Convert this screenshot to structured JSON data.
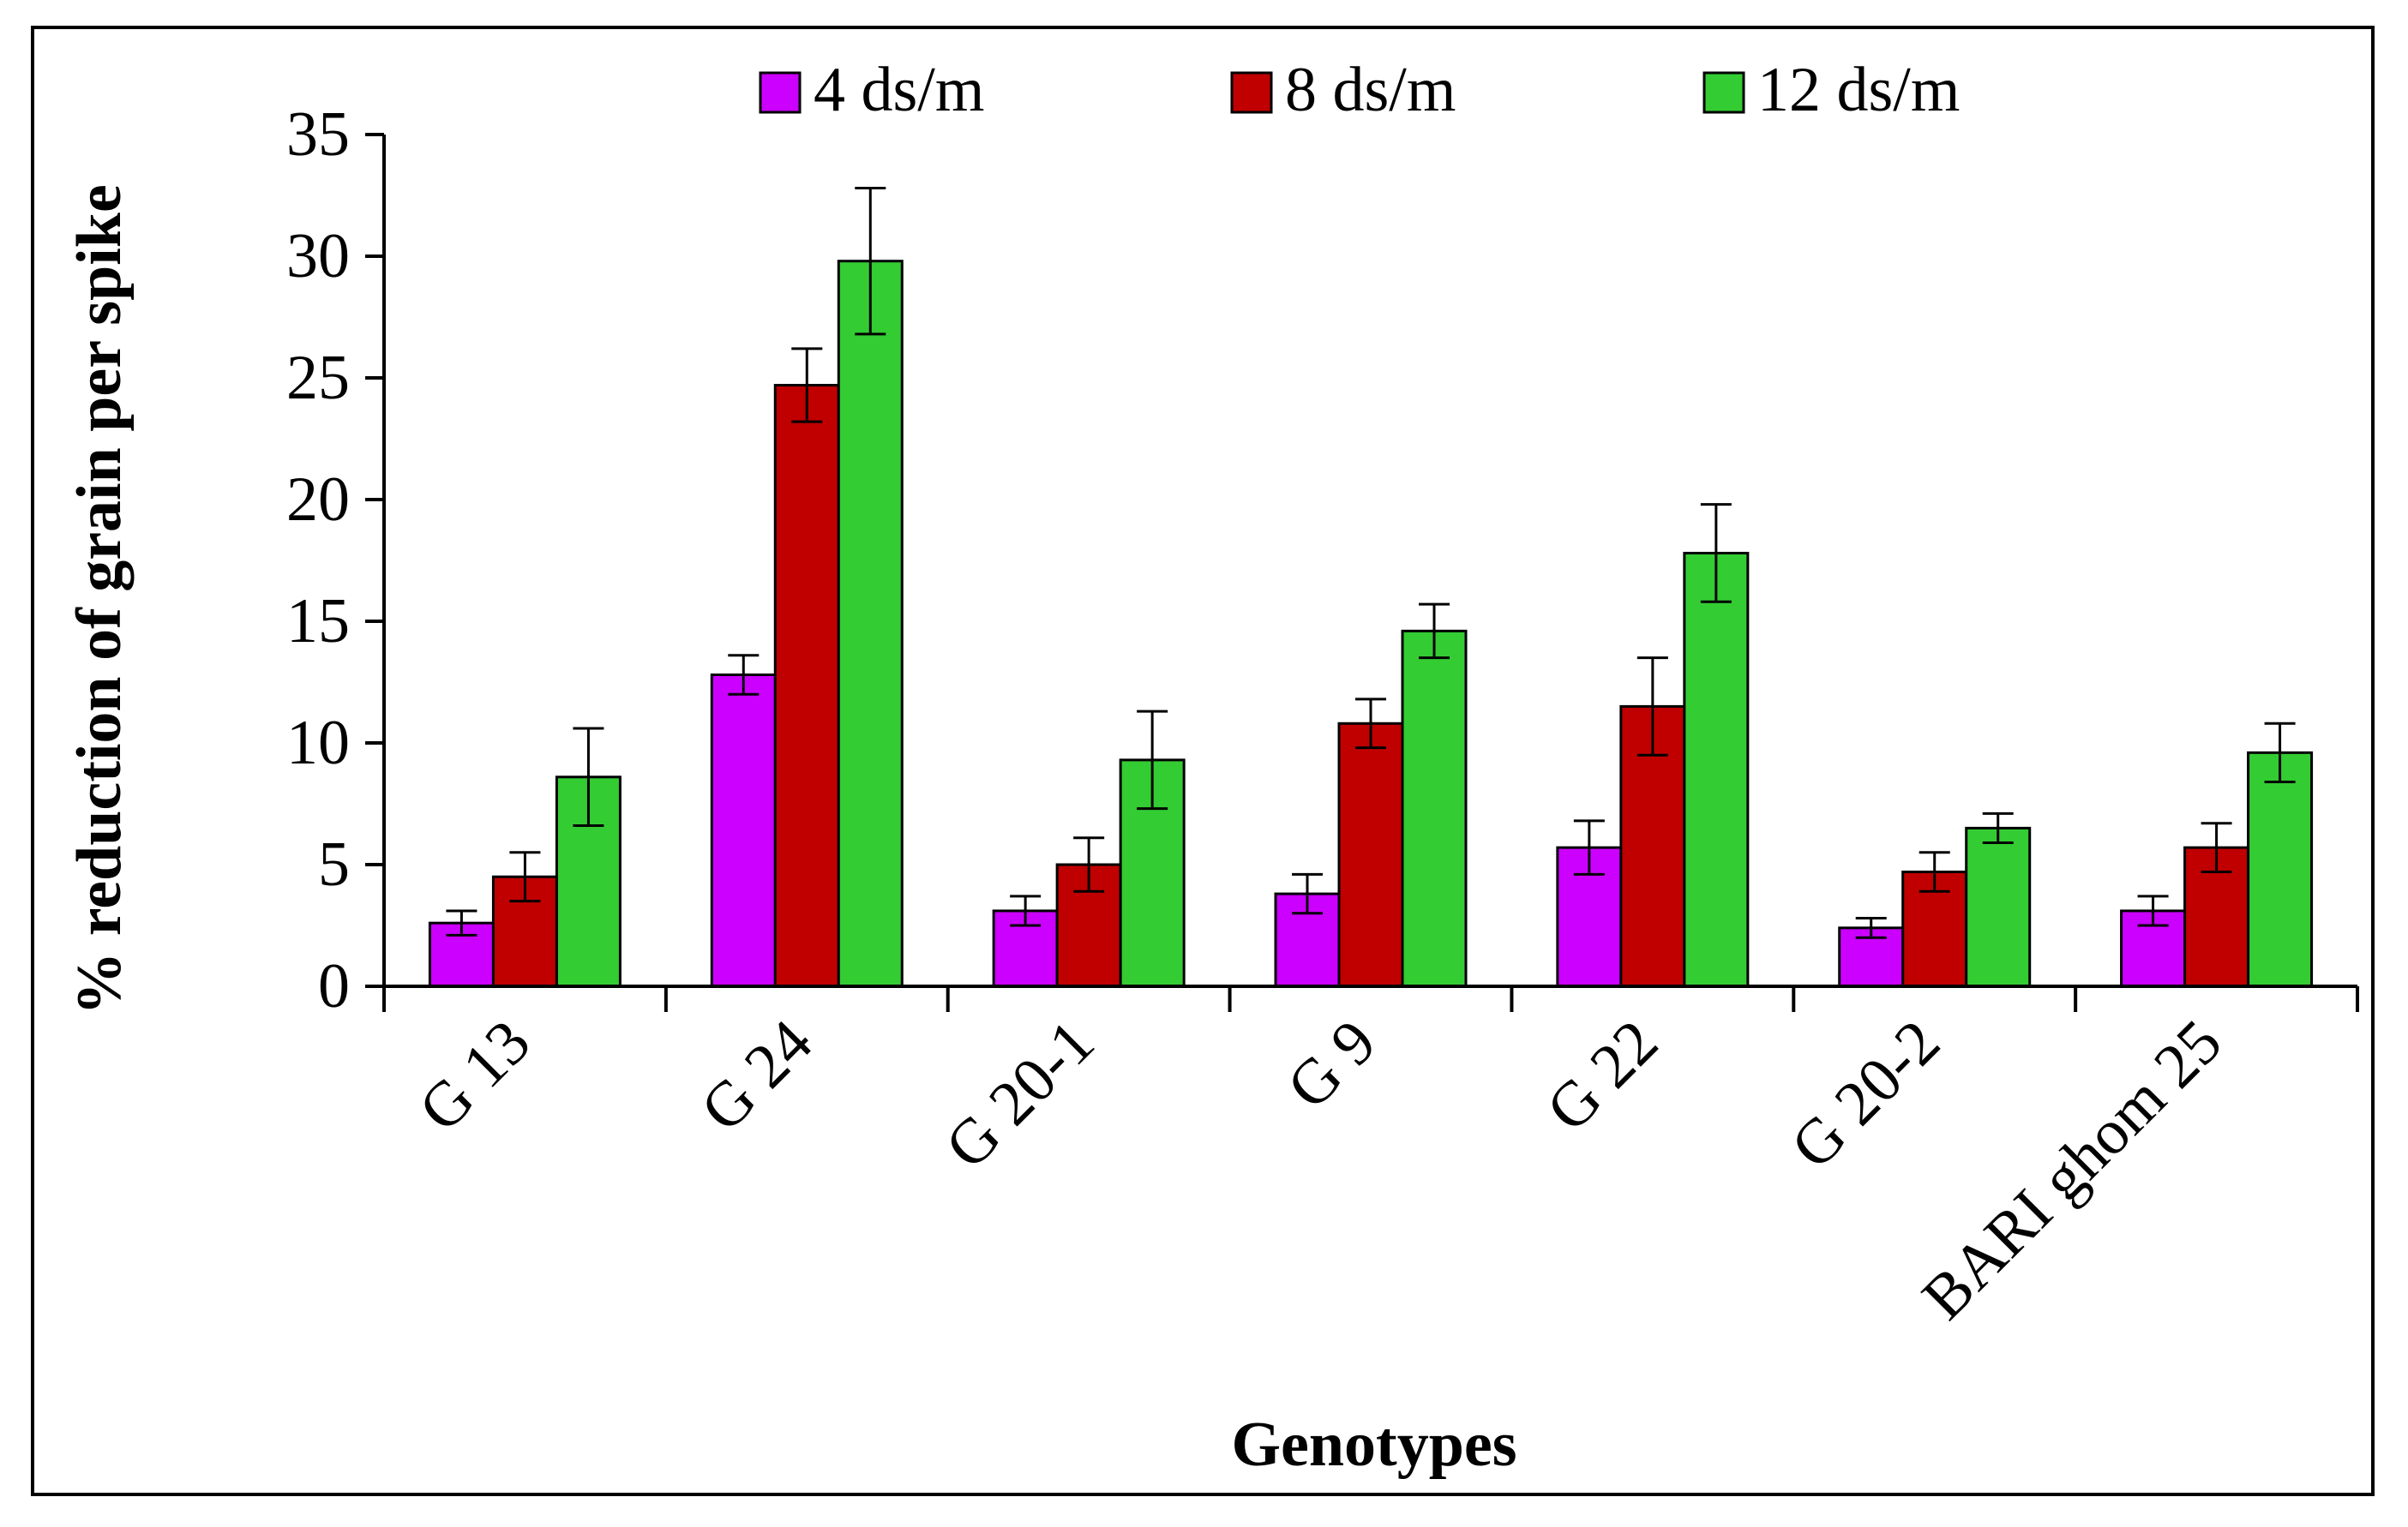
{
  "chart_data": {
    "type": "bar",
    "title": "",
    "xlabel": "Genotypes",
    "ylabel": "% reduction of grain per spike",
    "ylim": [
      0,
      35
    ],
    "yticks": [
      0,
      5,
      10,
      15,
      20,
      25,
      30,
      35
    ],
    "grid": false,
    "legend_position": "top",
    "categories": [
      "G 13",
      "G 24",
      "G 20-1",
      "G 9",
      "G 22",
      "G 20-2",
      "BARI ghom 25"
    ],
    "series": [
      {
        "name": "4 ds/m",
        "color": "#cc00ff",
        "values": [
          2.6,
          12.8,
          3.1,
          3.8,
          5.7,
          2.4,
          3.1
        ],
        "errors": [
          0.5,
          0.8,
          0.6,
          0.8,
          1.1,
          0.4,
          0.6
        ]
      },
      {
        "name": "8 ds/m",
        "color": "#c00000",
        "values": [
          4.5,
          24.7,
          5.0,
          10.8,
          11.5,
          4.7,
          5.7
        ],
        "errors": [
          1.0,
          1.5,
          1.1,
          1.0,
          2.0,
          0.8,
          1.0
        ]
      },
      {
        "name": "12 ds/m",
        "color": "#33cc33",
        "values": [
          8.6,
          29.8,
          9.3,
          14.6,
          17.8,
          6.5,
          9.6
        ],
        "errors": [
          2.0,
          3.0,
          2.0,
          1.1,
          2.0,
          0.6,
          1.2
        ]
      }
    ]
  }
}
